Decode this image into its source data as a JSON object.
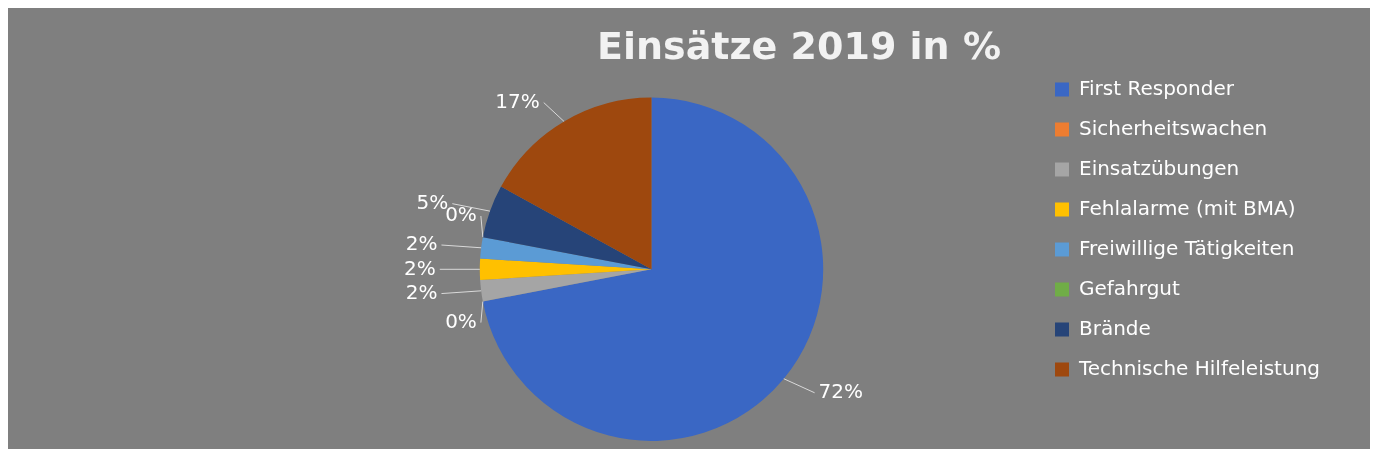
{
  "chart_data": {
    "type": "pie",
    "title": "Einsätze 2019 in %",
    "categories": [
      "First Responder",
      "Sicherheitswachen",
      "Einsatzübungen",
      "Fehlalarme (mit BMA)",
      "Freiwillige Tätigkeiten",
      "Gefahrgut",
      "Brände",
      "Technische Hilfeleistung"
    ],
    "values": [
      72,
      0,
      2,
      2,
      2,
      0,
      5,
      17
    ],
    "value_labels": [
      "72%",
      "0%",
      "2%",
      "2%",
      "2%",
      "0%",
      "5%",
      "17%"
    ],
    "colors": [
      "#3a67c4",
      "#ed7d31",
      "#a5a5a5",
      "#ffc000",
      "#5b9bd5",
      "#70ad47",
      "#264478",
      "#9e480e"
    ],
    "legend": "right"
  }
}
